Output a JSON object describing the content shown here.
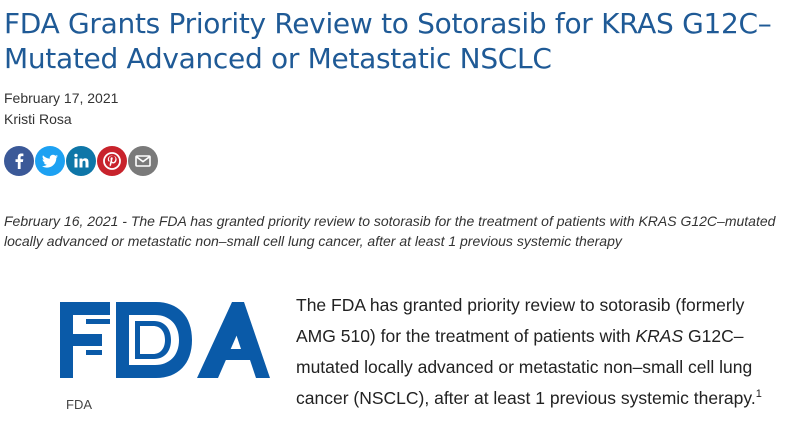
{
  "article": {
    "title": "FDA Grants Priority Review to Sotorasib for KRAS G12C–Mutated Advanced or Metastatic NSCLC",
    "date": "February 17, 2021",
    "author": "Kristi Rosa",
    "summary": "February 16, 2021 - The FDA has granted priority review to sotorasib for the treatment of patients with KRAS G12C–mutated locally advanced or metastatic non–small cell lung cancer, after at least 1 previous systemic therapy",
    "image_caption": "FDA",
    "body": {
      "part1": "The FDA has granted priority review to sotorasib (formerly AMG 510) for the treatment of patients with ",
      "gene": "KRAS",
      "part2": " G12C–mutated locally advanced or metastatic non–small cell lung cancer (NSCLC), after at least 1 previous systemic therapy.",
      "footnote": "1"
    }
  },
  "share": [
    {
      "icon": "facebook-icon",
      "color": "#3b5998"
    },
    {
      "icon": "twitter-icon",
      "color": "#1da1f2"
    },
    {
      "icon": "linkedin-icon",
      "color": "#0e76a8"
    },
    {
      "icon": "pinterest-icon",
      "color": "#c8232c"
    },
    {
      "icon": "email-icon",
      "color": "#7a7a7a"
    }
  ],
  "colors": {
    "title": "#1f5a96",
    "fda_logo": "#0a5aa8"
  }
}
